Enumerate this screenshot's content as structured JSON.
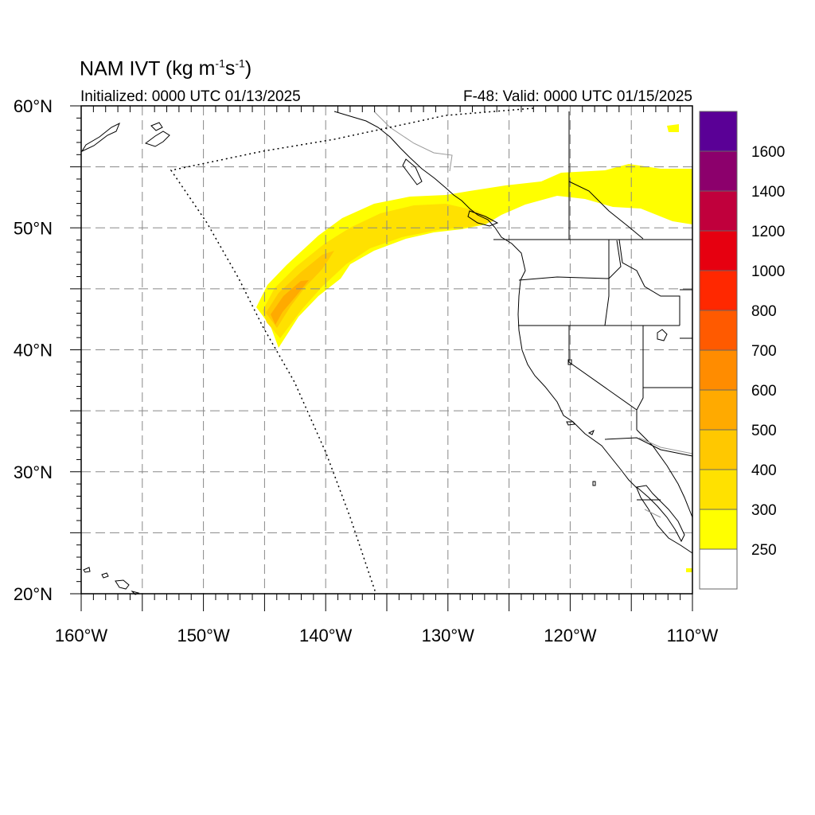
{
  "header": {
    "model": "NAM",
    "variable": "IVT",
    "units_open": "(kg m",
    "units_exp1": "-1",
    "units_mid": "s",
    "units_exp2": "-1",
    "units_close": ")",
    "initialized": "Initialized: 0000 UTC 01/13/2025",
    "valid": "F-48: Valid: 0000 UTC 01/15/2025"
  },
  "map": {
    "lon_range": [
      -160,
      -110
    ],
    "lat_range": [
      20,
      60
    ],
    "lon_ticks": [
      "160°W",
      "150°W",
      "140°W",
      "130°W",
      "120°W",
      "110°W"
    ],
    "lat_ticks": [
      "60°N",
      "50°N",
      "40°N",
      "30°N",
      "20°N"
    ],
    "lon_tick_values": [
      -160,
      -150,
      -140,
      -130,
      -120,
      -110
    ],
    "lat_tick_values": [
      60,
      50,
      40,
      30,
      20
    ],
    "grid": "dashed every 5 degrees",
    "domain_boundary": "dotted"
  },
  "colorbar": {
    "levels": [
      "250",
      "300",
      "400",
      "500",
      "600",
      "700",
      "800",
      "1000",
      "1200",
      "1400",
      "1600"
    ],
    "colors": [
      "#ffffff",
      "#ffff00",
      "#ffe100",
      "#ffc800",
      "#ffaa00",
      "#ff8c00",
      "#ff5a00",
      "#ff2800",
      "#e60010",
      "#c0003c",
      "#8c006c",
      "#5a0096"
    ]
  },
  "chart_data": {
    "type": "heatmap",
    "title": "NAM IVT (kg m-1s-1)",
    "subtitle_left": "Initialized: 0000 UTC 01/13/2025",
    "subtitle_right": "F-48: Valid: 0000 UTC 01/15/2025",
    "xlim": [
      -160,
      -110
    ],
    "ylim": [
      20,
      60
    ],
    "features": [
      {
        "name": "atmospheric river plume",
        "level_min": 250,
        "level_peak": 500,
        "peak_lon": -143,
        "peak_lat": 44,
        "axis_lon": [
          -145,
          -140,
          -135,
          -130,
          -127,
          -124
        ],
        "axis_lat": [
          43.5,
          46.5,
          49.2,
          51.2,
          51.5,
          51.3
        ]
      },
      {
        "name": "northern band",
        "level_min": 250,
        "level_peak": 300,
        "lon": [
          -128,
          -110
        ],
        "lat": [
          52,
          55
        ]
      }
    ]
  }
}
